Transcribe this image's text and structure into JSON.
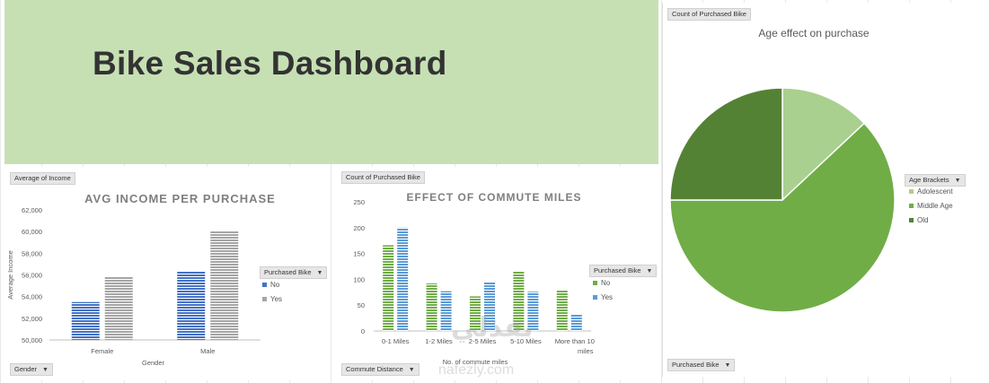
{
  "dashboard": {
    "title": "Bike Sales Dashboard"
  },
  "watermark": {
    "arabic": "نفذلي",
    "domain": "nafezly.com"
  },
  "income_chart": {
    "field_top": "Average of Income",
    "field_bottom": "Gender",
    "legend_title": "Purchased Bike"
  },
  "commute_chart": {
    "field_top": "Count of Purchased Bike",
    "field_bottom": "Commute Distance",
    "legend_title": "Purchased Bike"
  },
  "age_chart": {
    "field_top": "Count of Purchased Bike",
    "field_bottom": "Purchased Bike",
    "legend_title": "Age Brackets"
  },
  "chart_data": [
    {
      "type": "bar",
      "title": "AVG INCOME PER PURCHASE",
      "xlabel": "Gender",
      "ylabel": "Average Income",
      "categories": [
        "Female",
        "Male"
      ],
      "series": [
        {
          "name": "No",
          "values": [
            53500,
            56300
          ],
          "color": "#4472c4"
        },
        {
          "name": "Yes",
          "values": [
            55800,
            60100
          ],
          "color": "#a5a5a5"
        }
      ],
      "ylim": [
        50000,
        62000
      ],
      "yticks": [
        "50,000",
        "52,000",
        "54,000",
        "56,000",
        "58,000",
        "60,000",
        "62,000"
      ],
      "legend": "right"
    },
    {
      "type": "bar",
      "title": "EFFECT OF COMMUTE MILES",
      "xlabel": "No. of commute miles",
      "ylabel": "",
      "categories": [
        "0-1 Miles",
        "1-2 Miles",
        "2-5 Miles",
        "5-10 Miles",
        "More than 10 miles"
      ],
      "series": [
        {
          "name": "No",
          "values": [
            166,
            92,
            67,
            115,
            78
          ],
          "color": "#70ad47"
        },
        {
          "name": "Yes",
          "values": [
            200,
            77,
            95,
            76,
            33
          ],
          "color": "#5b9bd5"
        }
      ],
      "ylim": [
        0,
        250
      ],
      "yticks": [
        "0",
        "50",
        "100",
        "150",
        "200",
        "250"
      ],
      "legend": "right"
    },
    {
      "type": "pie",
      "title": "Age effect on purchase",
      "categories": [
        "Adolescent",
        "Middle Age",
        "Old"
      ],
      "values": [
        13,
        62,
        25
      ],
      "colors": [
        "#a9d08e",
        "#70ad47",
        "#548235"
      ],
      "legend": "right"
    }
  ]
}
